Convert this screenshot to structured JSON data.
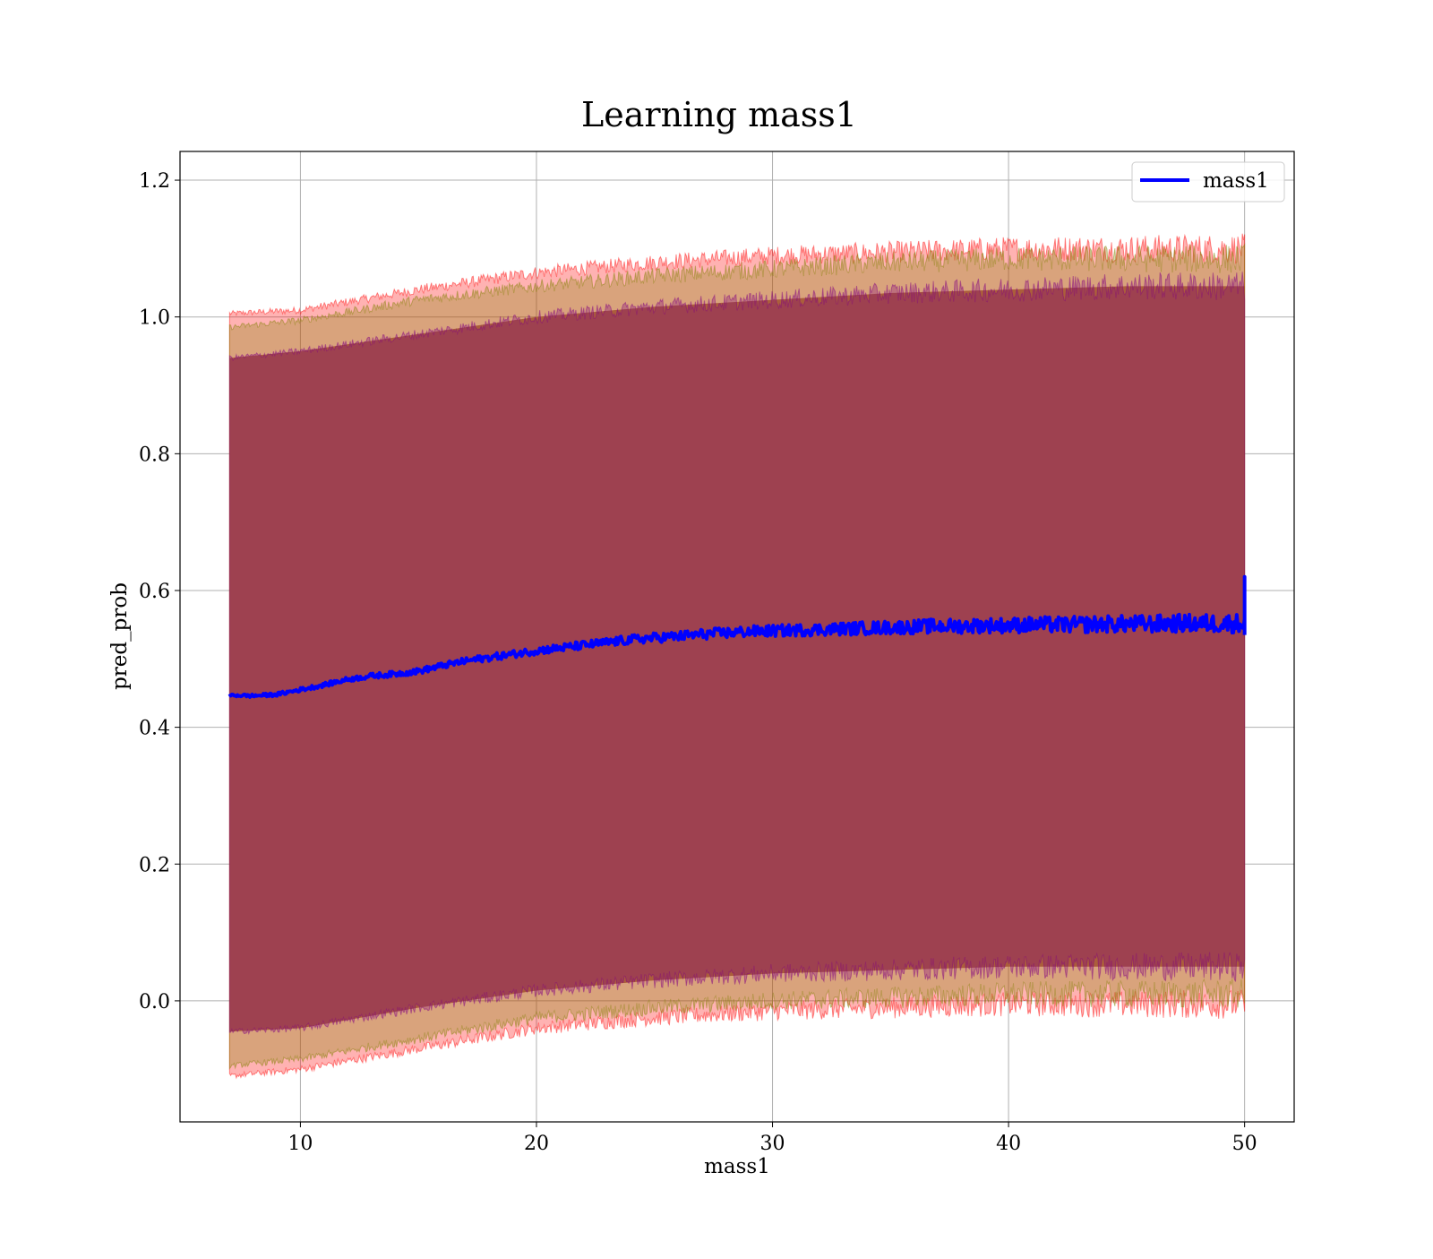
{
  "chart_data": {
    "type": "line",
    "title": "Learning mass1",
    "xlabel": "mass1",
    "ylabel": "pred_prob",
    "xlim": [
      4.9,
      52.1
    ],
    "ylim": [
      -0.177,
      1.242
    ],
    "xticks": [
      10,
      20,
      30,
      40,
      50
    ],
    "xtick_labels": [
      "10",
      "20",
      "30",
      "40",
      "50"
    ],
    "yticks": [
      0.0,
      0.2,
      0.4,
      0.6,
      0.8,
      1.0,
      1.2
    ],
    "ytick_labels": [
      "0.0",
      "0.2",
      "0.4",
      "0.6",
      "0.8",
      "1.0",
      "1.2"
    ],
    "grid": true,
    "legend": {
      "position": "top-right",
      "entries": [
        {
          "label": "mass1",
          "color": "#0000ff"
        }
      ]
    },
    "series": [
      {
        "name": "mass1",
        "color": "#0000ff",
        "x": [
          7,
          8,
          9,
          10,
          11,
          12,
          13,
          14,
          15,
          16,
          17,
          18,
          19,
          20,
          21,
          22,
          23,
          24,
          25,
          26,
          27,
          28,
          29,
          30,
          31,
          32,
          33,
          34,
          35,
          36,
          37,
          38,
          39,
          40,
          41,
          42,
          43,
          44,
          45,
          46,
          47,
          48,
          49,
          50
        ],
        "y": [
          0.447,
          0.446,
          0.448,
          0.455,
          0.462,
          0.47,
          0.475,
          0.478,
          0.482,
          0.49,
          0.497,
          0.502,
          0.507,
          0.512,
          0.516,
          0.52,
          0.524,
          0.528,
          0.531,
          0.533,
          0.536,
          0.538,
          0.54,
          0.541,
          0.542,
          0.543,
          0.544,
          0.545,
          0.546,
          0.547,
          0.548,
          0.548,
          0.549,
          0.549,
          0.55,
          0.55,
          0.55,
          0.551,
          0.551,
          0.551,
          0.552,
          0.552,
          0.552,
          0.552
        ]
      }
    ],
    "bands": [
      {
        "role": "outer",
        "color": "#ff0000",
        "opacity": 0.3,
        "x": [
          7,
          10,
          15,
          20,
          25,
          30,
          35,
          40,
          45,
          50
        ],
        "lower": [
          -0.11,
          -0.1,
          -0.07,
          -0.04,
          -0.025,
          -0.015,
          -0.01,
          -0.005,
          -0.005,
          -0.005
        ],
        "upper": [
          1.005,
          1.01,
          1.04,
          1.065,
          1.08,
          1.09,
          1.095,
          1.1,
          1.1,
          1.1
        ]
      },
      {
        "role": "middle",
        "color": "#808000",
        "opacity": 0.3,
        "x": [
          7,
          10,
          15,
          20,
          25,
          30,
          35,
          40,
          45,
          50
        ],
        "lower": [
          -0.095,
          -0.085,
          -0.055,
          -0.025,
          -0.01,
          0.0,
          0.005,
          0.01,
          0.01,
          0.01
        ],
        "upper": [
          0.985,
          0.995,
          1.025,
          1.045,
          1.06,
          1.07,
          1.08,
          1.085,
          1.085,
          1.085
        ]
      },
      {
        "role": "inner",
        "color": "#800080",
        "opacity": 0.3,
        "x": [
          7,
          10,
          15,
          20,
          25,
          30,
          35,
          40,
          45,
          50
        ],
        "lower": [
          -0.045,
          -0.04,
          -0.01,
          0.015,
          0.03,
          0.04,
          0.045,
          0.05,
          0.05,
          0.05
        ],
        "upper": [
          0.94,
          0.95,
          0.975,
          1.0,
          1.015,
          1.025,
          1.035,
          1.04,
          1.045,
          1.045
        ]
      }
    ],
    "core_fill": {
      "color": "#a1717a"
    }
  }
}
